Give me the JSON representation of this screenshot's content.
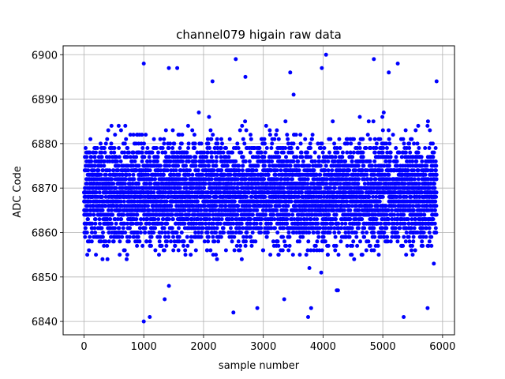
{
  "chart_data": {
    "type": "scatter",
    "title": "channel079 higain raw data",
    "xlabel": "sample number",
    "ylabel": "ADC Code",
    "xlim": [
      -350,
      6200
    ],
    "ylim": [
      6837,
      6902
    ],
    "xticks": [
      0,
      1000,
      2000,
      3000,
      4000,
      5000,
      6000
    ],
    "yticks": [
      6840,
      6850,
      6860,
      6870,
      6880,
      6890,
      6900
    ],
    "grid": true,
    "marker_color": "#0000ff",
    "series": [
      {
        "n_points": 5900,
        "x_range": [
          0,
          5900
        ],
        "typical_range": [
          6852,
          6886
        ],
        "sample_points": [
          {
            "x": 1000,
            "y": 6840
          },
          {
            "x": 1100,
            "y": 6841
          },
          {
            "x": 2500,
            "y": 6842
          },
          {
            "x": 2900,
            "y": 6843
          },
          {
            "x": 3750,
            "y": 6841
          },
          {
            "x": 3800,
            "y": 6843
          },
          {
            "x": 5350,
            "y": 6841
          },
          {
            "x": 5750,
            "y": 6843
          },
          {
            "x": 4050,
            "y": 6900
          },
          {
            "x": 2540,
            "y": 6899
          },
          {
            "x": 4850,
            "y": 6899
          },
          {
            "x": 1000,
            "y": 6898
          },
          {
            "x": 5250,
            "y": 6898
          },
          {
            "x": 1420,
            "y": 6897
          },
          {
            "x": 3980,
            "y": 6897
          },
          {
            "x": 1560,
            "y": 6897
          },
          {
            "x": 3450,
            "y": 6896
          },
          {
            "x": 5100,
            "y": 6896
          },
          {
            "x": 5900,
            "y": 6894
          },
          {
            "x": 2150,
            "y": 6894
          },
          {
            "x": 2700,
            "y": 6895
          },
          {
            "x": 4230,
            "y": 6847
          },
          {
            "x": 1350,
            "y": 6845
          },
          {
            "x": 3350,
            "y": 6845
          },
          {
            "x": 4250,
            "y": 6847
          }
        ]
      }
    ]
  }
}
